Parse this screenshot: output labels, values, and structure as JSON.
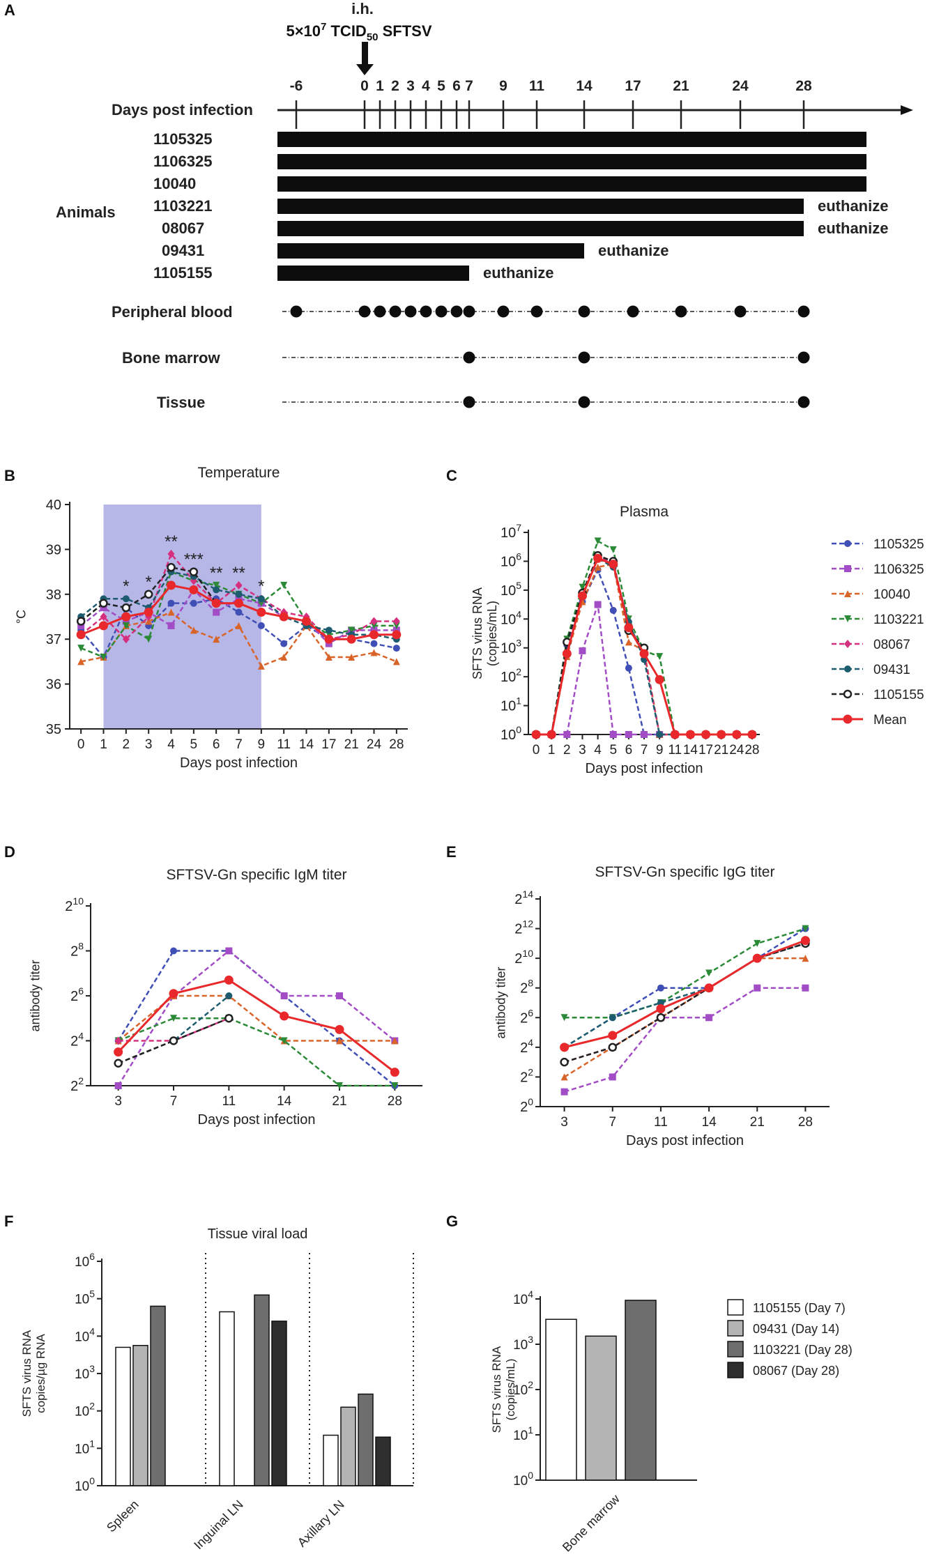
{
  "panel_letters": {
    "a": "A",
    "b": "B",
    "c": "C",
    "d": "D",
    "e": "E",
    "f": "F",
    "g": "G"
  },
  "colors": {
    "1105325": "#3f4fb5",
    "1106325": "#a24cc6",
    "10040": "#d9642a",
    "1103221": "#2a8a36",
    "08067": "#d52f7e",
    "09431": "#1d5c6e",
    "1105155": "#222222",
    "Mean": "#e8282b",
    "shade": "#a9a9e3",
    "bar_white": "#ffffff",
    "bar_light": "#b4b4b4",
    "bar_dark": "#6e6e6e",
    "bar_black": "#2f2f2f"
  },
  "schedule": {
    "inoculation_line1": "i.h.",
    "inoculation_line2": "5×10",
    "inoculation_exp": "7",
    "inoculation_line3": " TCID",
    "inoculation_sub": "50",
    "inoculation_line4": " SFTSV",
    "axis_label": "Days post infection",
    "ticks": [
      "-6",
      "0",
      "1",
      "2",
      "3",
      "4",
      "5",
      "6",
      "7",
      "9",
      "11",
      "14",
      "17",
      "21",
      "24",
      "28"
    ],
    "animals_label": "Animals",
    "animals": [
      {
        "id": "1105325",
        "end_day": 33,
        "note": ""
      },
      {
        "id": "1106325",
        "end_day": 33,
        "note": ""
      },
      {
        "id": "10040",
        "end_day": 33,
        "note": ""
      },
      {
        "id": "1103221",
        "end_day": 28,
        "note": "euthanize"
      },
      {
        "id": "08067",
        "end_day": 28,
        "note": "euthanize"
      },
      {
        "id": "09431",
        "end_day": 14,
        "note": "euthanize"
      },
      {
        "id": "1105155",
        "end_day": 7,
        "note": "euthanize"
      }
    ],
    "samplings": [
      {
        "label": "Peripheral blood",
        "days": [
          -6,
          0,
          1,
          2,
          3,
          4,
          5,
          6,
          7,
          9,
          11,
          14,
          17,
          21,
          24,
          28
        ]
      },
      {
        "label": "Bone marrow",
        "days": [
          7,
          14,
          28
        ]
      },
      {
        "label": "Tissue",
        "days": [
          7,
          14,
          28
        ]
      }
    ]
  },
  "chart_data": [
    {
      "panel": "B",
      "type": "line",
      "title": "Temperature",
      "xlabel": "Days post infection",
      "ylabel": "°C",
      "categories": [
        "0",
        "1",
        "2",
        "3",
        "4",
        "5",
        "6",
        "7",
        "9",
        "11",
        "14",
        "17",
        "21",
        "24",
        "28"
      ],
      "ylim": [
        35,
        40
      ],
      "yticks": [
        "35",
        "36",
        "37",
        "38",
        "39",
        "40"
      ],
      "shaded_range": [
        "1",
        "9"
      ],
      "significance": [
        {
          "category": "2",
          "label": "*"
        },
        {
          "category": "3",
          "label": "*"
        },
        {
          "category": "4",
          "label": "**"
        },
        {
          "category": "5",
          "label": "***"
        },
        {
          "category": "6",
          "label": "**"
        },
        {
          "category": "7",
          "label": "**"
        },
        {
          "category": "9",
          "label": "*"
        }
      ],
      "series": [
        {
          "name": "1105325",
          "values": [
            37.2,
            36.6,
            37.7,
            37.3,
            37.8,
            37.8,
            37.9,
            37.6,
            37.3,
            36.9,
            37.3,
            37.0,
            37.0,
            36.9,
            36.8
          ]
        },
        {
          "name": "1106325",
          "values": [
            37.3,
            37.7,
            37.4,
            37.6,
            37.3,
            38.1,
            37.6,
            37.9,
            37.8,
            37.5,
            37.4,
            36.9,
            37.2,
            37.2,
            37.2
          ]
        },
        {
          "name": "10040",
          "values": [
            36.5,
            36.6,
            37.3,
            37.4,
            37.6,
            37.2,
            37.0,
            37.3,
            36.4,
            36.6,
            37.3,
            36.6,
            36.6,
            36.7,
            36.5
          ]
        },
        {
          "name": "1103221",
          "values": [
            36.8,
            36.6,
            37.3,
            37.0,
            38.5,
            38.3,
            38.2,
            38.0,
            37.8,
            38.2,
            37.4,
            37.1,
            37.2,
            37.3,
            37.3
          ]
        },
        {
          "name": "08067",
          "values": [
            37.1,
            37.5,
            37.0,
            37.5,
            38.9,
            38.3,
            37.8,
            38.2,
            37.9,
            37.6,
            37.5,
            37.0,
            37.1,
            37.4,
            37.4
          ]
        },
        {
          "name": "09431",
          "values": [
            37.5,
            37.9,
            37.9,
            37.7,
            38.5,
            38.4,
            38.1,
            38.0,
            37.9,
            37.5,
            37.3,
            37.2,
            37.1,
            37.1,
            37.0
          ]
        },
        {
          "name": "1105155",
          "values": [
            37.4,
            37.8,
            37.7,
            38.0,
            38.6,
            38.5,
            37.8,
            null,
            null,
            null,
            null,
            null,
            null,
            null,
            null
          ]
        },
        {
          "name": "Mean",
          "values": [
            37.1,
            37.3,
            37.5,
            37.6,
            38.2,
            38.1,
            37.8,
            37.8,
            37.6,
            37.5,
            37.4,
            37.0,
            37.0,
            37.1,
            37.1
          ]
        }
      ]
    },
    {
      "panel": "C",
      "type": "line",
      "title": "Plasma",
      "xlabel": "Days post infection",
      "ylabel": "SFTS virus RNA\n(copies/mL)",
      "categories": [
        "0",
        "1",
        "2",
        "3",
        "4",
        "5",
        "6",
        "7",
        "9",
        "11",
        "14",
        "17",
        "21",
        "24",
        "28"
      ],
      "yscale": "log10",
      "ylim_exponent": [
        0,
        7
      ],
      "ytick_base": "10",
      "ytick_exponents": [
        "0",
        "1",
        "2",
        "3",
        "4",
        "5",
        "6",
        "7"
      ],
      "series": [
        {
          "name": "1105325",
          "values": [
            0,
            0,
            3.1,
            4.6,
            5.7,
            4.3,
            2.3,
            0,
            0,
            0,
            0,
            0,
            0,
            0,
            0
          ]
        },
        {
          "name": "1106325",
          "values": [
            0,
            0,
            0,
            2.9,
            4.5,
            0,
            0,
            0,
            0,
            0,
            0,
            0,
            0,
            0,
            0
          ]
        },
        {
          "name": "10040",
          "values": [
            0,
            0,
            2.7,
            4.6,
            5.8,
            5.9,
            3.2,
            2.9,
            0,
            0,
            0,
            0,
            0,
            0,
            0
          ]
        },
        {
          "name": "1103221",
          "values": [
            0,
            0,
            3.3,
            5.1,
            6.7,
            6.4,
            4.0,
            2.9,
            2.7,
            0,
            0,
            0,
            0,
            0,
            0
          ]
        },
        {
          "name": "08067",
          "values": [
            0,
            0,
            2.8,
            4.9,
            6.2,
            5.9,
            3.8,
            2.8,
            0,
            0,
            0,
            0,
            0,
            0,
            0
          ]
        },
        {
          "name": "09431",
          "values": [
            0,
            0,
            3.2,
            4.8,
            6.1,
            5.8,
            3.9,
            2.6,
            0,
            0,
            0,
            0,
            0,
            0,
            0
          ]
        },
        {
          "name": "1105155",
          "values": [
            0,
            0,
            3.2,
            4.9,
            6.2,
            6.0,
            3.6,
            3.0,
            null,
            null,
            null,
            null,
            null,
            null,
            null
          ]
        },
        {
          "name": "Mean",
          "values": [
            0,
            0,
            2.8,
            4.8,
            6.1,
            5.9,
            3.7,
            2.8,
            1.9,
            0,
            0,
            0,
            0,
            0,
            0
          ]
        }
      ],
      "legend": [
        "1105325",
        "1106325",
        "10040",
        "1103221",
        "08067",
        "09431",
        "1105155",
        "Mean"
      ]
    },
    {
      "panel": "D",
      "type": "line",
      "title": "SFTSV-Gn specific IgM  titer",
      "xlabel": "Days post infection",
      "ylabel": "antibody titer",
      "categories": [
        "3",
        "7",
        "11",
        "14",
        "21",
        "28"
      ],
      "yscale": "log2",
      "ylim_exponent": [
        2,
        10
      ],
      "ytick_base": "2",
      "ytick_exponents": [
        "2",
        "4",
        "6",
        "8",
        "10"
      ],
      "series": [
        {
          "name": "1105325",
          "values": [
            4,
            8,
            8,
            6,
            4,
            2
          ]
        },
        {
          "name": "1106325",
          "values": [
            2,
            6,
            8,
            6,
            6,
            4
          ]
        },
        {
          "name": "10040",
          "values": [
            4,
            6,
            6,
            4,
            4,
            4
          ]
        },
        {
          "name": "1103221",
          "values": [
            4,
            5,
            5,
            4,
            2,
            2
          ]
        },
        {
          "name": "08067",
          "values": [
            4,
            4,
            5,
            null,
            null,
            null
          ]
        },
        {
          "name": "09431",
          "values": [
            3,
            4,
            6,
            null,
            null,
            null
          ]
        },
        {
          "name": "1105155",
          "values": [
            3,
            4,
            5,
            null,
            null,
            null
          ]
        },
        {
          "name": "Mean",
          "values": [
            3.5,
            6.1,
            6.7,
            5.1,
            4.5,
            2.6
          ]
        }
      ]
    },
    {
      "panel": "E",
      "type": "line",
      "title": "SFTSV-Gn specific IgG  titer",
      "xlabel": "Days post infection",
      "ylabel": "antibody titer",
      "categories": [
        "3",
        "7",
        "11",
        "14",
        "21",
        "28"
      ],
      "yscale": "log2",
      "ylim_exponent": [
        0,
        14
      ],
      "ytick_base": "2",
      "ytick_exponents": [
        "0",
        "2",
        "4",
        "6",
        "8",
        "10",
        "12",
        "14"
      ],
      "series": [
        {
          "name": "1105325",
          "values": [
            4,
            6,
            8,
            8,
            10,
            12
          ]
        },
        {
          "name": "1106325",
          "values": [
            1,
            2,
            6,
            6,
            8,
            8
          ]
        },
        {
          "name": "10040",
          "values": [
            2,
            4,
            6,
            8,
            10,
            10
          ]
        },
        {
          "name": "1103221",
          "values": [
            6,
            6,
            7,
            9,
            11,
            12
          ]
        },
        {
          "name": "08067",
          "values": [
            3,
            4,
            6,
            8,
            10,
            11
          ]
        },
        {
          "name": "09431",
          "values": [
            4,
            6,
            7,
            8,
            10,
            11
          ]
        },
        {
          "name": "1105155",
          "values": [
            3,
            4,
            6,
            8,
            10,
            11
          ]
        },
        {
          "name": "Mean",
          "values": [
            4,
            4.8,
            6.6,
            8,
            10,
            11.2
          ]
        }
      ]
    },
    {
      "panel": "F",
      "type": "bar",
      "title": "Tissue viral load",
      "ylabel": "SFTS virus RNA\ncopies/µg RNA",
      "categories": [
        "Spleen",
        "Inguinal LN",
        "Axillary LN"
      ],
      "yscale": "log10",
      "ylim_exponent": [
        0,
        6
      ],
      "ytick_base": "10",
      "ytick_exponents": [
        "0",
        "1",
        "2",
        "3",
        "4",
        "5",
        "6"
      ],
      "series": [
        {
          "name": "1105155 (Day 7)",
          "values": [
            3.7,
            4.65,
            1.35
          ]
        },
        {
          "name": "09431 (Day 14)",
          "values": [
            3.75,
            null,
            2.1
          ]
        },
        {
          "name": "1103221 (Day 28)",
          "values": [
            4.8,
            5.1,
            2.45
          ]
        },
        {
          "name": "08067 (Day 28)",
          "values": [
            null,
            4.4,
            1.3
          ]
        }
      ]
    },
    {
      "panel": "G",
      "type": "bar",
      "ylabel": "SFTS virus RNA\n(copies/mL)",
      "categories": [
        "Bone marrow"
      ],
      "yscale": "log10",
      "ylim_exponent": [
        0,
        4
      ],
      "ytick_base": "10",
      "ytick_exponents": [
        "0",
        "1",
        "2",
        "3",
        "4"
      ],
      "series": [
        {
          "name": "1105155 (Day 7)",
          "values": [
            3.55
          ]
        },
        {
          "name": "09431 (Day 14)",
          "values": [
            3.18
          ]
        },
        {
          "name": "1103221 (Day 28)",
          "values": [
            3.97
          ]
        }
      ],
      "legend": [
        "1105155 (Day 7)",
        "09431 (Day 14)",
        "1103221 (Day 28)",
        "08067 (Day 28)"
      ]
    }
  ]
}
